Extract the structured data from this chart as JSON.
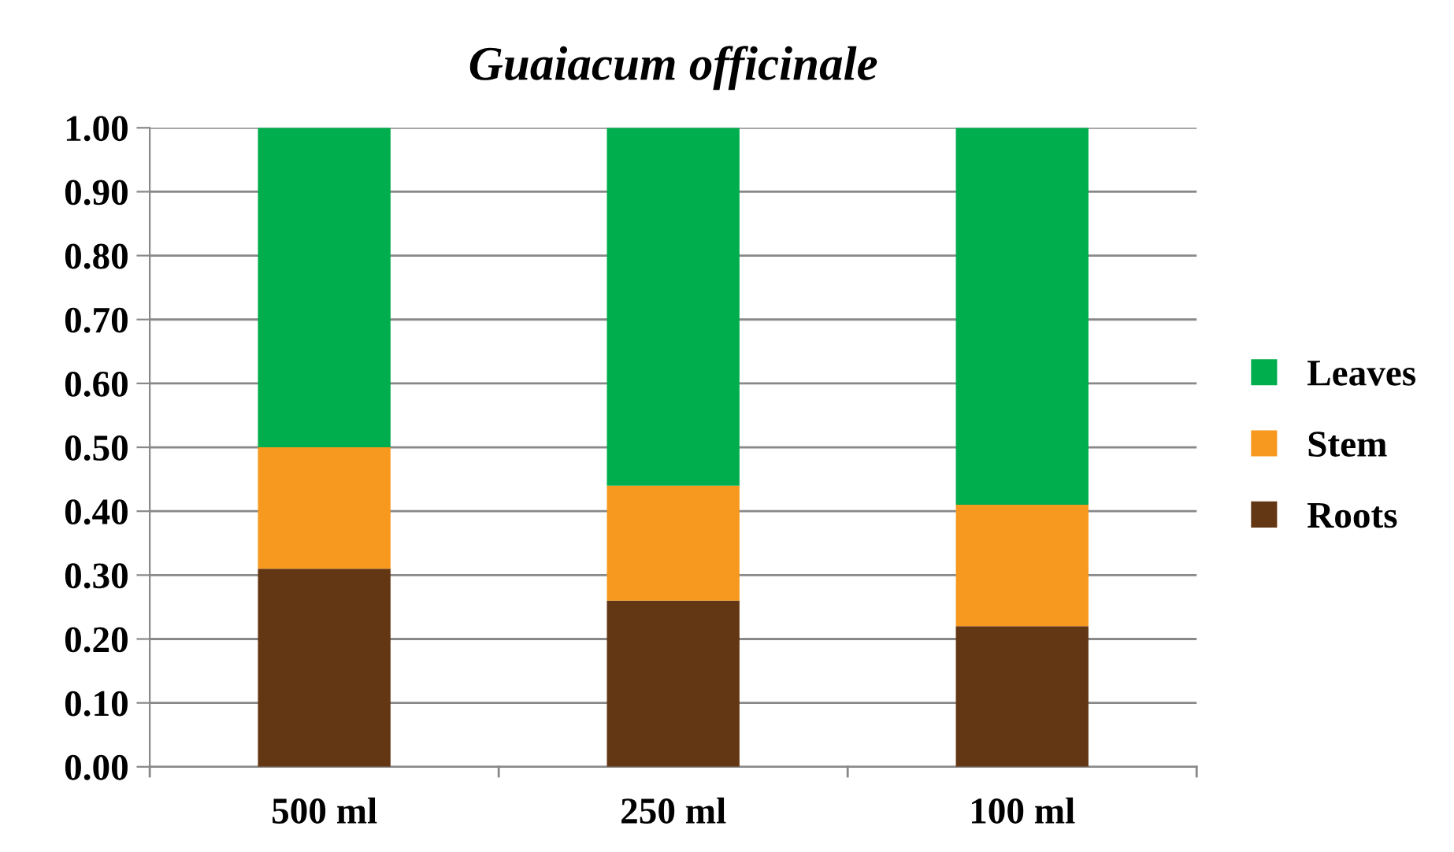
{
  "chart_data": {
    "type": "bar",
    "stacked": true,
    "title": "Guaiacum officinale",
    "categories": [
      "500 ml",
      "250 ml",
      "100 ml"
    ],
    "series": [
      {
        "name": "Roots",
        "color": "#643714",
        "values": [
          0.31,
          0.26,
          0.22
        ]
      },
      {
        "name": "Stem",
        "color": "#f7991f",
        "values": [
          0.19,
          0.18,
          0.19
        ]
      },
      {
        "name": "Leaves",
        "color": "#00ae4d",
        "values": [
          0.5,
          0.56,
          0.59
        ]
      }
    ],
    "ylim": [
      0,
      1
    ],
    "yticks": [
      {
        "value": 0,
        "label": "0.00"
      },
      {
        "value": 0.1,
        "label": "0.10"
      },
      {
        "value": 0.2,
        "label": "0.20"
      },
      {
        "value": 0.3,
        "label": "0.30"
      },
      {
        "value": 0.4,
        "label": "0.40"
      },
      {
        "value": 0.5,
        "label": "0.50"
      },
      {
        "value": 0.6,
        "label": "0.60"
      },
      {
        "value": 0.7,
        "label": "0.70"
      },
      {
        "value": 0.8,
        "label": "0.80"
      },
      {
        "value": 0.9,
        "label": "0.90"
      },
      {
        "value": 1,
        "label": "1.00"
      }
    ],
    "grid": "y",
    "legend": "right"
  }
}
